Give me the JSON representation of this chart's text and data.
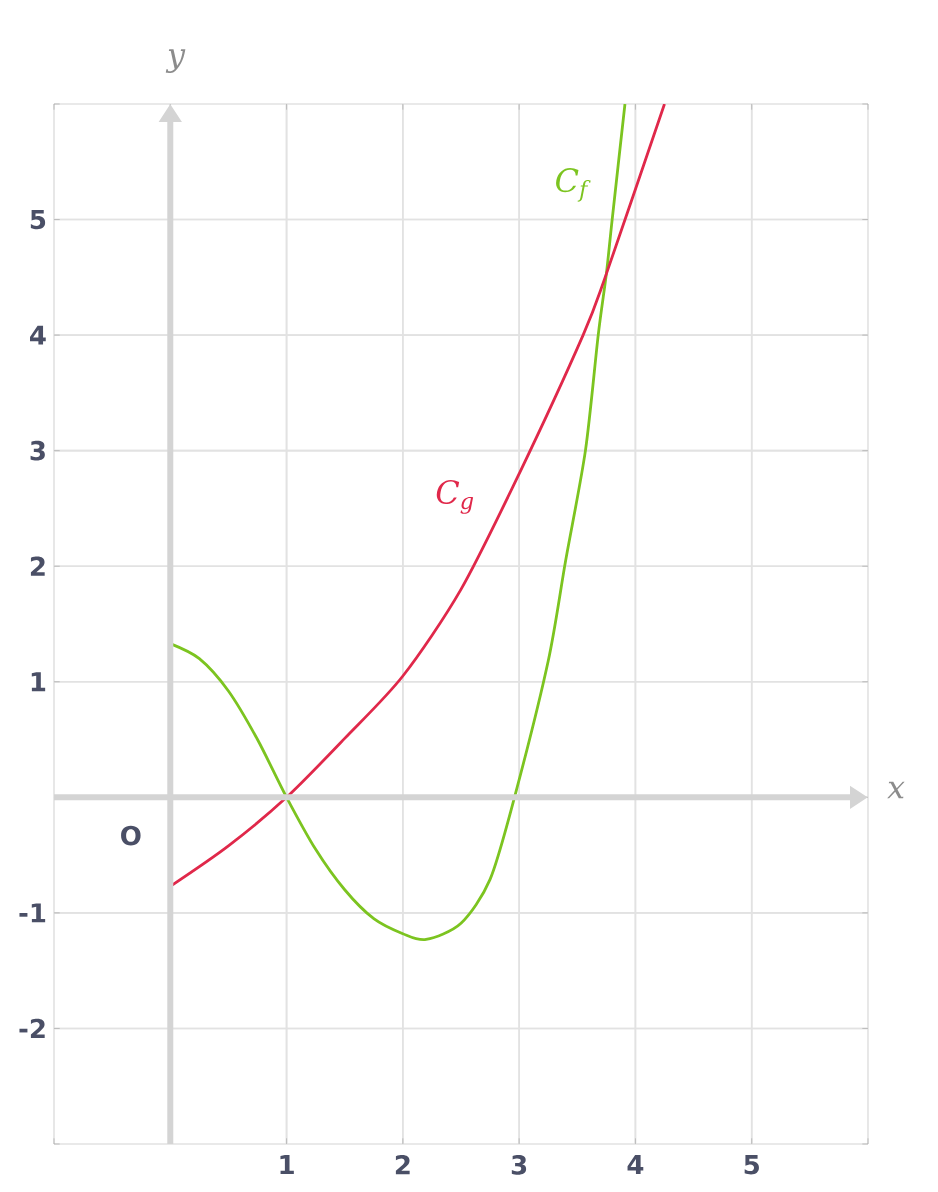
{
  "chart_data": {
    "type": "line",
    "xlabel": "x",
    "ylabel": "y",
    "xlim": [
      -1,
      6
    ],
    "ylim": [
      -3,
      6
    ],
    "xticks": [
      1,
      2,
      3,
      4,
      5
    ],
    "yticks": [
      -2,
      -1,
      1,
      2,
      3,
      4,
      5
    ],
    "grid": true,
    "marker": "none",
    "line_style": "solid",
    "annotations": [
      "O"
    ],
    "series": [
      {
        "name": "*C*$_{f}$",
        "color": "#7cc420",
        "x": [
          0,
          0.25,
          0.5,
          0.75,
          1,
          1.25,
          1.5,
          1.75,
          2,
          2.2,
          2.5,
          2.75,
          2.96,
          3.25,
          3.4,
          3.57,
          3.68,
          3.75,
          3.8,
          3.91
        ],
        "values": [
          1.33,
          1.2,
          0.92,
          0.5,
          0,
          -0.45,
          -0.8,
          -1.05,
          -1.18,
          -1.23,
          -1.09,
          -0.71,
          0,
          1.18,
          2.05,
          3,
          4,
          4.53,
          5,
          6
        ]
      },
      {
        "name": "*C*$_{g}$",
        "color": "#e0284a",
        "x": [
          0,
          0.5,
          1,
          1.5,
          2,
          2.5,
          3,
          3.55,
          3.75,
          4.25
        ],
        "values": [
          -0.77,
          -0.42,
          0,
          0.51,
          1.05,
          1.8,
          2.8,
          4,
          4.53,
          6
        ]
      }
    ]
  }
}
